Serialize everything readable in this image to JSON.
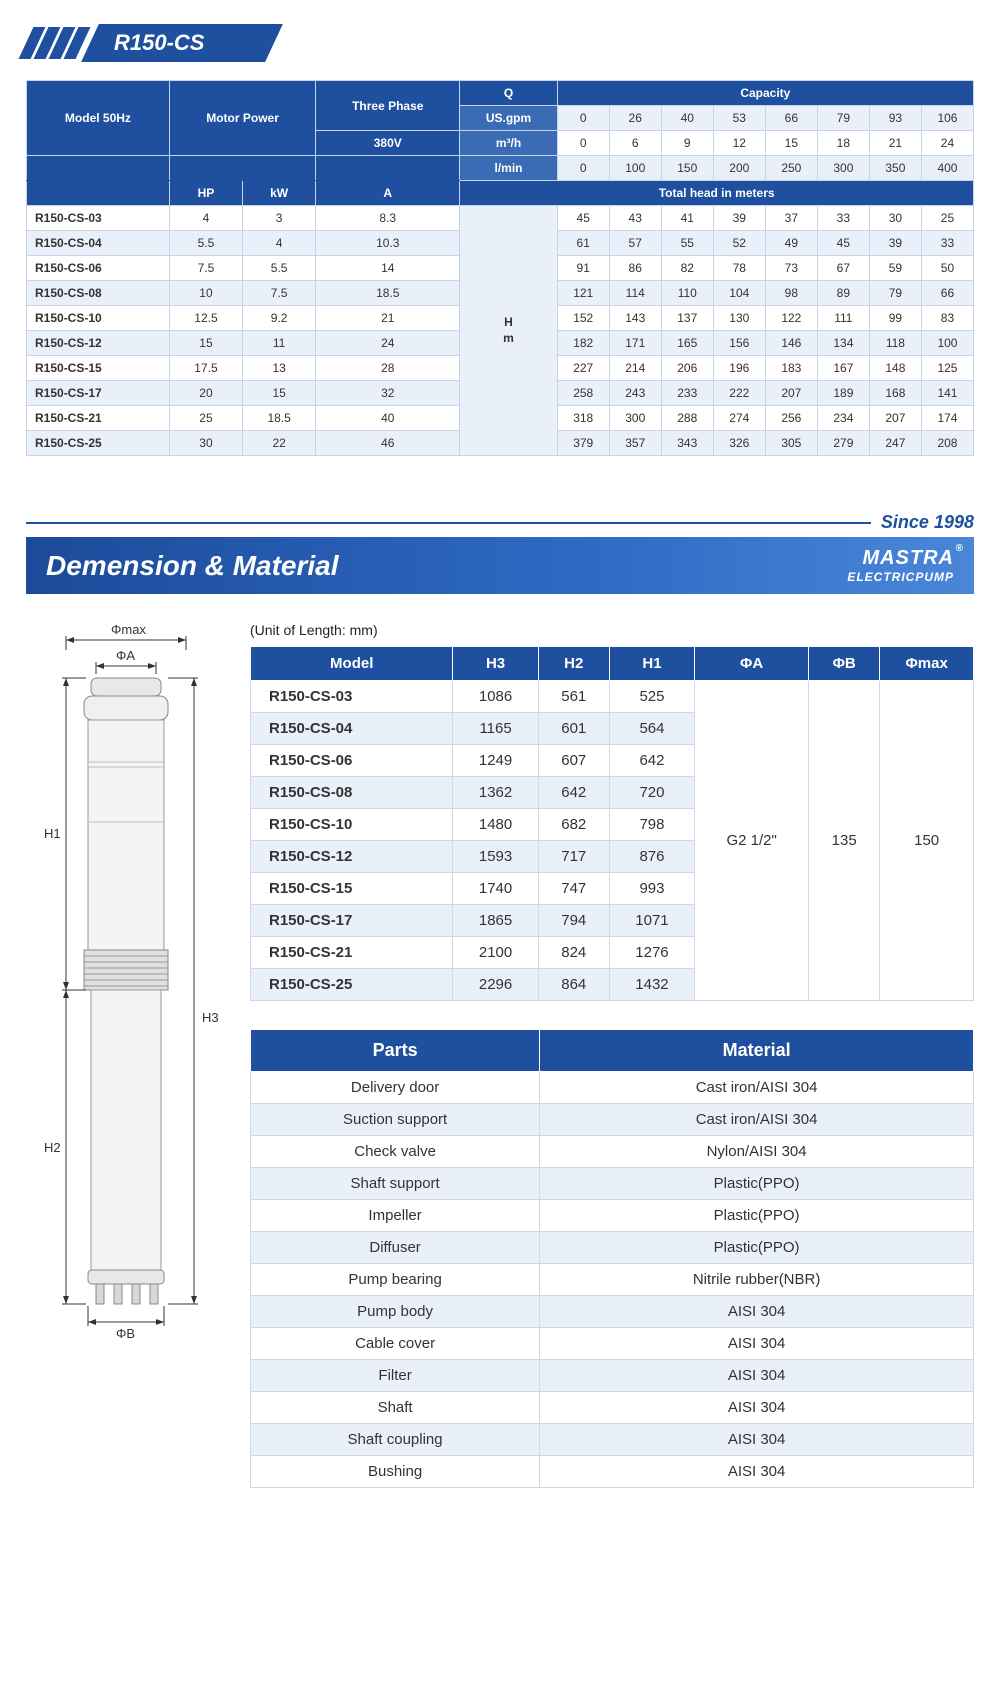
{
  "colors": {
    "primary": "#1f4f9f",
    "primary_light": "#3a6bb5",
    "row_alt": "#eaf0f9",
    "border": "#c8d4e6"
  },
  "title": "R150-CS",
  "since_text": "Since 1998",
  "section_title": "Demension & Material",
  "brand_name": "MASTRA",
  "brand_sub": "ELECTRICPUMP",
  "unit_note": "(Unit of Length: mm)",
  "spec": {
    "header_model": "Model 50Hz",
    "header_motor": "Motor Power",
    "header_phase": "Three Phase",
    "header_voltage": "380V",
    "header_q": "Q",
    "header_capacity": "Capacity",
    "header_total_head": "Total head in meters",
    "q_units": [
      "US.gpm",
      "m³/h",
      "l/min"
    ],
    "capacity_rows": [
      [
        "0",
        "26",
        "40",
        "53",
        "66",
        "79",
        "93",
        "106"
      ],
      [
        "0",
        "6",
        "9",
        "12",
        "15",
        "18",
        "21",
        "24"
      ],
      [
        "0",
        "100",
        "150",
        "200",
        "250",
        "300",
        "350",
        "400"
      ]
    ],
    "sub_headers": [
      "HP",
      "kW",
      "A"
    ],
    "hm_label": "H m",
    "rows": [
      {
        "model": "R150-CS-03",
        "hp": "4",
        "kw": "3",
        "a": "8.3",
        "head": [
          "45",
          "43",
          "41",
          "39",
          "37",
          "33",
          "30",
          "25"
        ]
      },
      {
        "model": "R150-CS-04",
        "hp": "5.5",
        "kw": "4",
        "a": "10.3",
        "head": [
          "61",
          "57",
          "55",
          "52",
          "49",
          "45",
          "39",
          "33"
        ]
      },
      {
        "model": "R150-CS-06",
        "hp": "7.5",
        "kw": "5.5",
        "a": "14",
        "head": [
          "91",
          "86",
          "82",
          "78",
          "73",
          "67",
          "59",
          "50"
        ]
      },
      {
        "model": "R150-CS-08",
        "hp": "10",
        "kw": "7.5",
        "a": "18.5",
        "head": [
          "121",
          "114",
          "110",
          "104",
          "98",
          "89",
          "79",
          "66"
        ]
      },
      {
        "model": "R150-CS-10",
        "hp": "12.5",
        "kw": "9.2",
        "a": "21",
        "head": [
          "152",
          "143",
          "137",
          "130",
          "122",
          "111",
          "99",
          "83"
        ]
      },
      {
        "model": "R150-CS-12",
        "hp": "15",
        "kw": "11",
        "a": "24",
        "head": [
          "182",
          "171",
          "165",
          "156",
          "146",
          "134",
          "118",
          "100"
        ]
      },
      {
        "model": "R150-CS-15",
        "hp": "17.5",
        "kw": "13",
        "a": "28",
        "head": [
          "227",
          "214",
          "206",
          "196",
          "183",
          "167",
          "148",
          "125"
        ]
      },
      {
        "model": "R150-CS-17",
        "hp": "20",
        "kw": "15",
        "a": "32",
        "head": [
          "258",
          "243",
          "233",
          "222",
          "207",
          "189",
          "168",
          "141"
        ]
      },
      {
        "model": "R150-CS-21",
        "hp": "25",
        "kw": "18.5",
        "a": "40",
        "head": [
          "318",
          "300",
          "288",
          "274",
          "256",
          "234",
          "207",
          "174"
        ]
      },
      {
        "model": "R150-CS-25",
        "hp": "30",
        "kw": "22",
        "a": "46",
        "head": [
          "379",
          "357",
          "343",
          "326",
          "305",
          "279",
          "247",
          "208"
        ]
      }
    ]
  },
  "dim_table": {
    "headers": [
      "Model",
      "H3",
      "H2",
      "H1",
      "ΦA",
      "ΦB",
      "Φmax"
    ],
    "phi_a": "G2 1/2\"",
    "phi_b": "135",
    "phi_max": "150",
    "rows": [
      {
        "model": "R150-CS-03",
        "h3": "1086",
        "h2": "561",
        "h1": "525"
      },
      {
        "model": "R150-CS-04",
        "h3": "1165",
        "h2": "601",
        "h1": "564"
      },
      {
        "model": "R150-CS-06",
        "h3": "1249",
        "h2": "607",
        "h1": "642"
      },
      {
        "model": "R150-CS-08",
        "h3": "1362",
        "h2": "642",
        "h1": "720"
      },
      {
        "model": "R150-CS-10",
        "h3": "1480",
        "h2": "682",
        "h1": "798"
      },
      {
        "model": "R150-CS-12",
        "h3": "1593",
        "h2": "717",
        "h1": "876"
      },
      {
        "model": "R150-CS-15",
        "h3": "1740",
        "h2": "747",
        "h1": "993"
      },
      {
        "model": "R150-CS-17",
        "h3": "1865",
        "h2": "794",
        "h1": "1071"
      },
      {
        "model": "R150-CS-21",
        "h3": "2100",
        "h2": "824",
        "h1": "1276"
      },
      {
        "model": "R150-CS-25",
        "h3": "2296",
        "h2": "864",
        "h1": "1432"
      }
    ]
  },
  "mat_table": {
    "header_parts": "Parts",
    "header_material": "Material",
    "rows": [
      {
        "part": "Delivery door",
        "mat": "Cast iron/AISI 304"
      },
      {
        "part": "Suction support",
        "mat": "Cast iron/AISI 304"
      },
      {
        "part": "Check valve",
        "mat": "Nylon/AISI 304"
      },
      {
        "part": "Shaft support",
        "mat": "Plastic(PPO)"
      },
      {
        "part": "Impeller",
        "mat": "Plastic(PPO)"
      },
      {
        "part": "Diffuser",
        "mat": "Plastic(PPO)"
      },
      {
        "part": "Pump bearing",
        "mat": "Nitrile rubber(NBR)"
      },
      {
        "part": "Pump body",
        "mat": "AISI 304"
      },
      {
        "part": "Cable cover",
        "mat": "AISI 304"
      },
      {
        "part": "Filter",
        "mat": "AISI 304"
      },
      {
        "part": "Shaft",
        "mat": "AISI 304"
      },
      {
        "part": "Shaft coupling",
        "mat": "AISI 304"
      },
      {
        "part": "Bushing",
        "mat": "AISI 304"
      }
    ]
  },
  "diagram_labels": {
    "phimax": "Φmax",
    "phia": "ΦA",
    "phib": "ΦB",
    "h1": "H1",
    "h2": "H2",
    "h3": "H3"
  }
}
